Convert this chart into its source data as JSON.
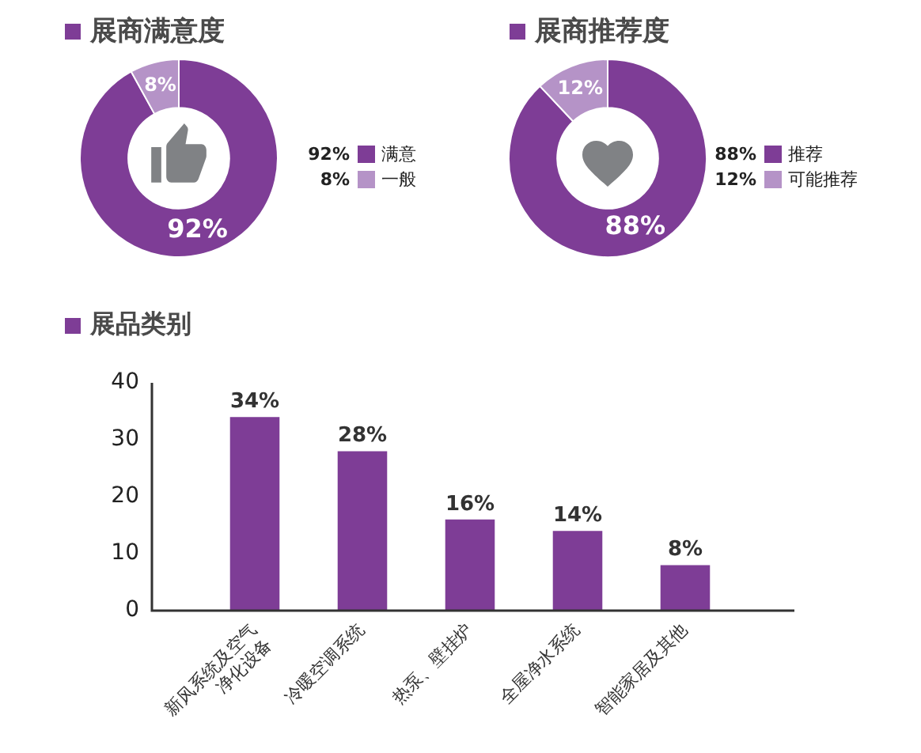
{
  "chart_data": [
    {
      "type": "donut",
      "title": "展商满意度",
      "categories": [
        "满意",
        "一般"
      ],
      "values": [
        92,
        8
      ],
      "colors": [
        "#7e3d96",
        "#b593c7"
      ],
      "value_labels": [
        "92%",
        "8%"
      ],
      "legend": "right"
    },
    {
      "type": "donut",
      "title": "展商推荐度",
      "categories": [
        "推荐",
        "可能推荐"
      ],
      "values": [
        88,
        12
      ],
      "colors": [
        "#7e3d96",
        "#b593c7"
      ],
      "value_labels": [
        "88%",
        "12%"
      ],
      "legend": "right"
    },
    {
      "type": "bar",
      "title": "展品类别",
      "categories": [
        "新风系统及空气净化设备",
        "冷暖空调系统",
        "热泵、壁挂炉",
        "全屋净水系统",
        "智能家居及其他"
      ],
      "values": [
        34,
        28,
        16,
        14,
        8
      ],
      "color": "#7e3d96",
      "value_labels": [
        "34%",
        "28%",
        "16%",
        "14%",
        "8%"
      ],
      "ylim": [
        0,
        40
      ],
      "yticks": [
        0,
        10,
        20,
        30,
        40
      ]
    }
  ]
}
